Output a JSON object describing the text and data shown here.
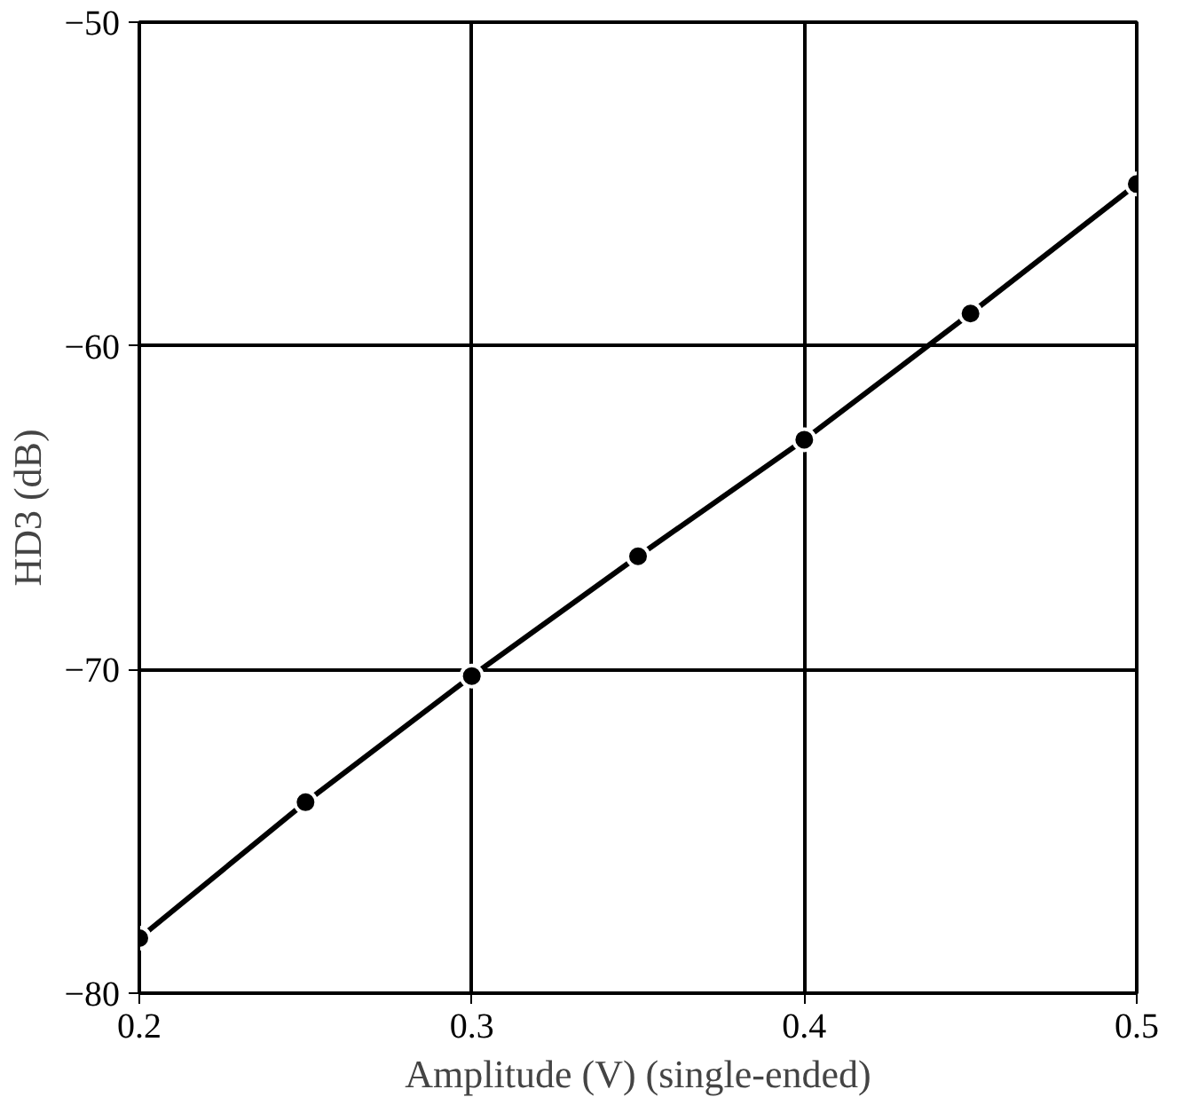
{
  "chart_data": {
    "type": "line",
    "xlabel": "Amplitude (V) (single-ended)",
    "ylabel": "HD3 (dB)",
    "x": [
      0.2,
      0.25,
      0.3,
      0.35,
      0.4,
      0.45,
      0.5
    ],
    "series": [
      {
        "color": "#000000",
        "values": [
          -78.3,
          -74.1,
          -70.2,
          -66.5,
          -62.9,
          -59.0,
          -55.0
        ]
      }
    ],
    "xlim": [
      0.2,
      0.5
    ],
    "ylim": [
      -80,
      -50
    ],
    "xticks": [
      0.2,
      0.3,
      0.4,
      0.5
    ],
    "yticks": [
      -80,
      -70,
      -60,
      -50
    ],
    "grid": true,
    "marker": "circle",
    "line_style": "solid"
  }
}
